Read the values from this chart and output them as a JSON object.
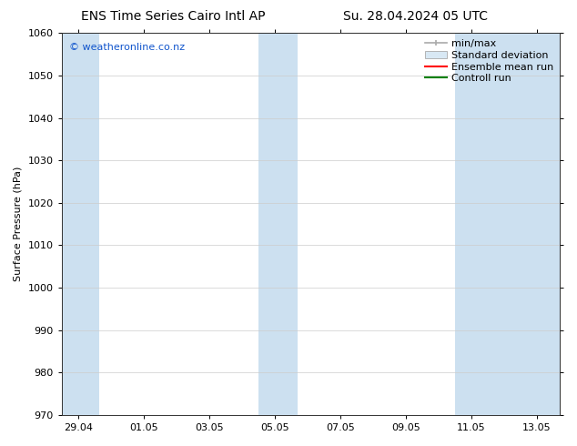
{
  "title_left": "ENS Time Series Cairo Intl AP",
  "title_right": "Su. 28.04.2024 05 UTC",
  "ylabel": "Surface Pressure (hPa)",
  "ylim": [
    970,
    1060
  ],
  "yticks": [
    970,
    980,
    990,
    1000,
    1010,
    1020,
    1030,
    1040,
    1050,
    1060
  ],
  "xtick_labels": [
    "29.04",
    "01.05",
    "03.05",
    "05.05",
    "07.05",
    "09.05",
    "11.05",
    "13.05"
  ],
  "watermark": "© weatheronline.co.nz",
  "watermark_color": "#1155cc",
  "bg_color": "#ffffff",
  "plot_bg_color": "#ffffff",
  "shaded_band_color": "#cce0f0",
  "shaded_band_alpha": 1.0,
  "legend_labels": [
    "min/max",
    "Standard deviation",
    "Ensemble mean run",
    "Controll run"
  ],
  "legend_line_color_minmax": "#aaaaaa",
  "legend_fill_std": "#d8e8f4",
  "legend_line_color_ens": "#ff0000",
  "legend_line_color_ctrl": "#008000",
  "font_size_title": 10,
  "font_size_ticks": 8,
  "font_size_legend": 8,
  "font_size_ylabel": 8,
  "font_size_watermark": 8
}
